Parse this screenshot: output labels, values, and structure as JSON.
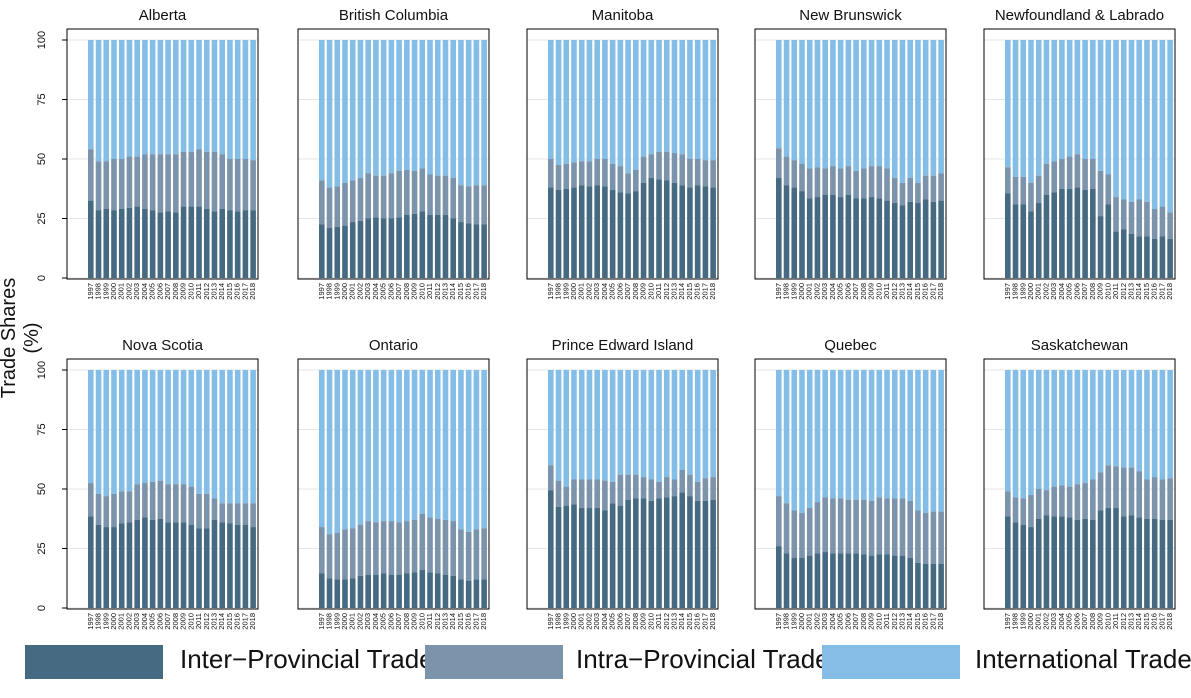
{
  "chart_data": {
    "type": "bar",
    "stacked": true,
    "ylabel": "Trade Shares (%)",
    "ylim": [
      0,
      100
    ],
    "yticks": [
      0,
      25,
      50,
      75,
      100
    ],
    "categories": [
      "1997",
      "1998",
      "1999",
      "2000",
      "2001",
      "2002",
      "2003",
      "2004",
      "2005",
      "2006",
      "2007",
      "2008",
      "2009",
      "2010",
      "2011",
      "2012",
      "2013",
      "2014",
      "2015",
      "2016",
      "2017",
      "2018"
    ],
    "colors": {
      "Inter-Provincial Trade": "#456a82",
      "Intra-Provincial Trade": "#7b93ab",
      "International Trade": "#84bee6"
    },
    "legend": {
      "placement": "bottom",
      "labels": [
        "Inter−Provincial Trade",
        "Intra−Provincial Trade",
        "International Trade"
      ]
    },
    "grid": true,
    "panels": [
      {
        "title": "Alberta",
        "inter": [
          32.5,
          28.5,
          29,
          28.5,
          29,
          29.5,
          30,
          29,
          28.5,
          27.5,
          28,
          27.5,
          30,
          30,
          30,
          29,
          28,
          29,
          28.5,
          28,
          28.5,
          28.5
        ],
        "intra_top": [
          54,
          49,
          49,
          50,
          50,
          51,
          51,
          52,
          52,
          52,
          52,
          52,
          53,
          53,
          54,
          53,
          53,
          52,
          50,
          50,
          50,
          49.5
        ]
      },
      {
        "title": "British Columbia",
        "inter": [
          22.5,
          21,
          21.5,
          22,
          23.5,
          24,
          25,
          25.5,
          25,
          25,
          25.5,
          26.5,
          27,
          28,
          26.5,
          26.5,
          26.5,
          25,
          23.5,
          23,
          22.5,
          22.5
        ],
        "intra_top": [
          41,
          38,
          38.5,
          40,
          41,
          42,
          44,
          43,
          43,
          44,
          45,
          45.5,
          45,
          46,
          43.5,
          43,
          43,
          42,
          39,
          38.5,
          39,
          39
        ]
      },
      {
        "title": "Manitoba",
        "inter": [
          38,
          37,
          37.5,
          38,
          39,
          38.5,
          39,
          38.5,
          37,
          36,
          35.5,
          36.5,
          40,
          42,
          41.5,
          41,
          40,
          39,
          38,
          39,
          38.5,
          38
        ],
        "intra_top": [
          50,
          47.5,
          48,
          48.5,
          49,
          49,
          50,
          50,
          48,
          47,
          44,
          45.5,
          51,
          52,
          53,
          53,
          52.5,
          52,
          50,
          50,
          49.5,
          49.5
        ]
      },
      {
        "title": "New Brunswick",
        "inter": [
          42,
          39,
          38,
          36.5,
          33.5,
          34,
          35,
          35,
          34,
          35,
          33.5,
          33.5,
          34,
          33.5,
          32.5,
          31.5,
          30.5,
          32,
          31.5,
          33,
          32,
          32.5
        ],
        "intra_top": [
          54.5,
          51,
          49.5,
          48,
          46,
          46.5,
          46,
          47,
          46,
          47,
          45,
          46,
          47,
          47,
          46,
          42,
          40,
          42,
          40,
          43,
          43,
          44
        ]
      },
      {
        "title": "Newfoundland & Labrado",
        "inter": [
          35.5,
          31,
          31,
          28,
          31.5,
          35,
          36,
          37.5,
          37.5,
          38,
          37,
          37.5,
          26,
          31,
          19.5,
          20.5,
          18.5,
          17.5,
          17.5,
          16.5,
          17.5,
          16.5
        ],
        "intra_top": [
          46.5,
          42.5,
          42.5,
          40,
          43,
          48,
          49,
          50,
          51,
          52,
          50,
          50,
          45,
          43.5,
          34,
          33,
          32,
          33,
          32,
          29,
          30,
          27.5
        ]
      },
      {
        "title": "Nova Scotia",
        "inter": [
          38.5,
          35,
          34,
          34,
          35.5,
          36,
          37,
          38,
          37,
          37.5,
          36,
          36,
          36,
          35,
          33.5,
          33.5,
          37,
          36,
          35.5,
          35,
          35,
          34
        ],
        "intra_top": [
          52.5,
          48,
          47,
          48,
          49,
          49,
          52,
          52.5,
          53,
          53.5,
          52,
          52,
          52,
          51,
          48,
          48,
          46,
          44,
          44,
          44,
          44,
          44
        ]
      },
      {
        "title": "Ontario",
        "inter": [
          14.5,
          12.5,
          12,
          12,
          12.5,
          13.5,
          14,
          14,
          14.5,
          14,
          14,
          14.5,
          15,
          16,
          15,
          14.5,
          14,
          13.5,
          12,
          11.5,
          12,
          12
        ],
        "intra_top": [
          34,
          31,
          31.5,
          33,
          33.5,
          35,
          36.5,
          36,
          36.5,
          36.5,
          36,
          36.5,
          37,
          39.5,
          38,
          37.5,
          37,
          36.5,
          33,
          32,
          33,
          33.5
        ]
      },
      {
        "title": "Prince Edward Island",
        "inter": [
          49.5,
          42.5,
          43,
          43.5,
          42,
          42,
          42,
          41,
          44,
          43,
          45.5,
          46,
          46,
          45,
          46,
          46.5,
          47,
          48.5,
          47,
          45,
          45,
          45.5
        ],
        "intra_top": [
          60,
          53.5,
          51,
          54,
          54,
          54,
          54,
          53.5,
          53,
          56,
          56,
          56,
          55,
          54,
          53,
          55,
          54,
          58,
          56,
          53,
          54.5,
          55
        ]
      },
      {
        "title": "Quebec",
        "inter": [
          26,
          23,
          21,
          21,
          22,
          23,
          23.5,
          23,
          23,
          23,
          23,
          22.5,
          22,
          22.5,
          22.5,
          22,
          22,
          21,
          19,
          18.5,
          18.5,
          18.5
        ],
        "intra_top": [
          47,
          44,
          41,
          40,
          42,
          44.5,
          46.5,
          46,
          46,
          45.5,
          45.5,
          45.5,
          45,
          46.5,
          46,
          46,
          46,
          45,
          41,
          40,
          40.5,
          40.5
        ]
      },
      {
        "title": "Saskatchewan",
        "inter": [
          38.5,
          36,
          35,
          34,
          37.5,
          39,
          38.5,
          38.5,
          38,
          37,
          37.5,
          37,
          41,
          42,
          42,
          38.5,
          39,
          38,
          37.5,
          37.5,
          37,
          37
        ],
        "intra_top": [
          49,
          46.5,
          46,
          47.5,
          50,
          49.5,
          51,
          51.5,
          51,
          52,
          52.5,
          54,
          57,
          60,
          59.5,
          59,
          59,
          57.5,
          54,
          55,
          54,
          54.5
        ]
      }
    ]
  }
}
